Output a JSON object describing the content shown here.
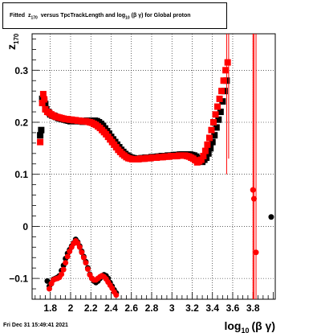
{
  "chart_data": {
    "type": "scatter",
    "title": {
      "prefix": "Fitted",
      "var": "z",
      "var_sub": "170",
      "mid": "versus TpcTrackLength and log",
      "log_sub": "10",
      "paren_open": "(",
      "beta": "β",
      "gamma": "γ",
      "paren_close": ")",
      "suffix": "for Global proton"
    },
    "xlabel": {
      "main": "log",
      "sub": "10",
      "paren": "(β γ)"
    },
    "ylabel": {
      "main": "z",
      "sub": "170"
    },
    "xlim": [
      1.62,
      4.02
    ],
    "ylim": [
      -0.14,
      0.37
    ],
    "x_ticks": [
      {
        "value": 1.8,
        "label": "1.8"
      },
      {
        "value": 2.0,
        "label": "2"
      },
      {
        "value": 2.2,
        "label": "2.2"
      },
      {
        "value": 2.4,
        "label": "2.4"
      },
      {
        "value": 2.6,
        "label": "2.6"
      },
      {
        "value": 2.8,
        "label": "2.8"
      },
      {
        "value": 3.0,
        "label": "3"
      },
      {
        "value": 3.2,
        "label": "3.2"
      },
      {
        "value": 3.4,
        "label": "3.4"
      },
      {
        "value": 3.6,
        "label": "3.6"
      },
      {
        "value": 3.8,
        "label": "3.8"
      }
    ],
    "y_ticks": [
      {
        "value": -0.1,
        "label": "−0.1"
      },
      {
        "value": 0.0,
        "label": "0"
      },
      {
        "value": 0.1,
        "label": "0.1"
      },
      {
        "value": 0.2,
        "label": "0.2"
      },
      {
        "value": 0.3,
        "label": "0.3"
      }
    ],
    "grid": true,
    "colors": {
      "black_series": "#000000",
      "red_series": "#ff0000"
    },
    "series": [
      {
        "marker": "square",
        "color": "#000000",
        "points": [
          [
            1.7,
            0.175
          ],
          [
            1.71,
            0.185
          ],
          [
            1.72,
            0.245
          ],
          [
            1.74,
            0.24
          ],
          [
            1.75,
            0.235
          ],
          [
            1.76,
            0.225
          ],
          [
            1.78,
            0.22
          ],
          [
            1.8,
            0.215
          ],
          [
            1.82,
            0.213
          ],
          [
            1.84,
            0.212
          ],
          [
            1.86,
            0.21
          ],
          [
            1.88,
            0.208
          ],
          [
            1.9,
            0.207
          ],
          [
            1.92,
            0.206
          ],
          [
            1.94,
            0.205
          ],
          [
            1.96,
            0.204
          ],
          [
            1.98,
            0.203
          ],
          [
            2.0,
            0.202
          ],
          [
            2.02,
            0.204
          ],
          [
            2.04,
            0.203
          ],
          [
            2.06,
            0.202
          ],
          [
            2.08,
            0.203
          ],
          [
            2.1,
            0.202
          ],
          [
            2.12,
            0.201
          ],
          [
            2.14,
            0.202
          ],
          [
            2.16,
            0.203
          ],
          [
            2.18,
            0.203
          ],
          [
            2.2,
            0.202
          ],
          [
            2.22,
            0.201
          ],
          [
            2.24,
            0.203
          ],
          [
            2.26,
            0.202
          ],
          [
            2.28,
            0.2
          ],
          [
            2.3,
            0.197
          ],
          [
            2.32,
            0.193
          ],
          [
            2.34,
            0.188
          ],
          [
            2.36,
            0.183
          ],
          [
            2.38,
            0.178
          ],
          [
            2.4,
            0.172
          ],
          [
            2.42,
            0.167
          ],
          [
            2.44,
            0.162
          ],
          [
            2.46,
            0.157
          ],
          [
            2.48,
            0.152
          ],
          [
            2.5,
            0.147
          ],
          [
            2.52,
            0.143
          ],
          [
            2.54,
            0.139
          ],
          [
            2.56,
            0.136
          ],
          [
            2.58,
            0.134
          ],
          [
            2.6,
            0.132
          ],
          [
            2.62,
            0.131
          ],
          [
            2.64,
            0.13
          ],
          [
            2.66,
            0.13
          ],
          [
            2.68,
            0.13
          ],
          [
            2.7,
            0.131
          ],
          [
            2.72,
            0.131
          ],
          [
            2.74,
            0.132
          ],
          [
            2.76,
            0.132
          ],
          [
            2.78,
            0.132
          ],
          [
            2.8,
            0.133
          ],
          [
            2.82,
            0.133
          ],
          [
            2.84,
            0.133
          ],
          [
            2.86,
            0.134
          ],
          [
            2.88,
            0.134
          ],
          [
            2.9,
            0.135
          ],
          [
            2.92,
            0.135
          ],
          [
            2.94,
            0.135
          ],
          [
            2.96,
            0.136
          ],
          [
            2.98,
            0.136
          ],
          [
            3.0,
            0.136
          ],
          [
            3.02,
            0.137
          ],
          [
            3.04,
            0.137
          ],
          [
            3.06,
            0.137
          ],
          [
            3.08,
            0.138
          ],
          [
            3.1,
            0.138
          ],
          [
            3.12,
            0.138
          ],
          [
            3.14,
            0.138
          ],
          [
            3.16,
            0.138
          ],
          [
            3.18,
            0.138
          ],
          [
            3.2,
            0.137
          ],
          [
            3.22,
            0.136
          ],
          [
            3.24,
            0.134
          ],
          [
            3.26,
            0.131
          ],
          [
            3.28,
            0.127
          ],
          [
            3.3,
            0.124
          ],
          [
            3.32,
            0.128
          ],
          [
            3.34,
            0.132
          ],
          [
            3.36,
            0.14
          ],
          [
            3.38,
            0.15
          ],
          [
            3.4,
            0.162
          ],
          [
            3.42,
            0.175
          ],
          [
            3.44,
            0.19
          ],
          [
            3.46,
            0.205
          ],
          [
            3.48,
            0.22
          ],
          [
            3.5,
            0.24
          ],
          [
            3.52,
            0.26
          ],
          [
            3.54,
            0.28
          ],
          [
            1.77,
            -0.105
          ],
          [
            1.79,
            -0.115
          ],
          [
            1.81,
            -0.11
          ],
          [
            1.83,
            -0.102
          ],
          [
            1.85,
            -0.1
          ],
          [
            1.87,
            -0.098
          ],
          [
            1.89,
            -0.095
          ],
          [
            1.91,
            -0.085
          ],
          [
            1.93,
            -0.075
          ],
          [
            1.95,
            -0.062
          ],
          [
            1.97,
            -0.052
          ],
          [
            1.99,
            -0.045
          ],
          [
            2.01,
            -0.038
          ],
          [
            2.03,
            -0.032
          ],
          [
            2.05,
            -0.025
          ],
          [
            2.07,
            -0.03
          ],
          [
            2.09,
            -0.038
          ],
          [
            2.11,
            -0.048
          ],
          [
            2.13,
            -0.058
          ],
          [
            2.15,
            -0.068
          ],
          [
            2.17,
            -0.08
          ],
          [
            2.19,
            -0.092
          ],
          [
            2.21,
            -0.1
          ],
          [
            2.23,
            -0.105
          ],
          [
            2.25,
            -0.108
          ],
          [
            2.27,
            -0.105
          ],
          [
            2.29,
            -0.1
          ],
          [
            2.31,
            -0.095
          ],
          [
            2.33,
            -0.093
          ],
          [
            2.35,
            -0.095
          ],
          [
            2.37,
            -0.1
          ],
          [
            2.39,
            -0.108
          ],
          [
            2.41,
            -0.115
          ],
          [
            2.43,
            -0.122
          ],
          [
            2.45,
            -0.128
          ],
          [
            3.98,
            0.018
          ]
        ]
      },
      {
        "marker": "square",
        "color": "#ff0000",
        "points": [
          [
            1.7,
            0.162
          ],
          [
            1.72,
            0.237
          ],
          [
            1.73,
            0.254
          ],
          [
            1.74,
            0.244
          ],
          [
            1.75,
            0.225
          ],
          [
            1.77,
            0.22
          ],
          [
            1.79,
            0.218
          ],
          [
            1.81,
            0.215
          ],
          [
            1.83,
            0.213
          ],
          [
            1.85,
            0.211
          ],
          [
            1.87,
            0.21
          ],
          [
            1.89,
            0.209
          ],
          [
            1.91,
            0.208
          ],
          [
            1.93,
            0.207
          ],
          [
            1.95,
            0.206
          ],
          [
            1.97,
            0.206
          ],
          [
            1.99,
            0.205
          ],
          [
            2.01,
            0.205
          ],
          [
            2.03,
            0.204
          ],
          [
            2.05,
            0.204
          ],
          [
            2.07,
            0.203
          ],
          [
            2.09,
            0.203
          ],
          [
            2.11,
            0.202
          ],
          [
            2.13,
            0.202
          ],
          [
            2.15,
            0.202
          ],
          [
            2.17,
            0.201
          ],
          [
            2.19,
            0.2
          ],
          [
            2.21,
            0.199
          ],
          [
            2.23,
            0.197
          ],
          [
            2.25,
            0.195
          ],
          [
            2.27,
            0.192
          ],
          [
            2.29,
            0.189
          ],
          [
            2.31,
            0.185
          ],
          [
            2.33,
            0.181
          ],
          [
            2.35,
            0.177
          ],
          [
            2.37,
            0.172
          ],
          [
            2.39,
            0.167
          ],
          [
            2.41,
            0.162
          ],
          [
            2.43,
            0.157
          ],
          [
            2.45,
            0.152
          ],
          [
            2.47,
            0.147
          ],
          [
            2.49,
            0.143
          ],
          [
            2.51,
            0.139
          ],
          [
            2.53,
            0.136
          ],
          [
            2.55,
            0.133
          ],
          [
            2.57,
            0.131
          ],
          [
            2.59,
            0.13
          ],
          [
            2.61,
            0.129
          ],
          [
            2.63,
            0.129
          ],
          [
            2.65,
            0.129
          ],
          [
            2.67,
            0.129
          ],
          [
            2.69,
            0.13
          ],
          [
            2.71,
            0.13
          ],
          [
            2.73,
            0.13
          ],
          [
            2.75,
            0.131
          ],
          [
            2.77,
            0.131
          ],
          [
            2.79,
            0.131
          ],
          [
            2.81,
            0.132
          ],
          [
            2.83,
            0.132
          ],
          [
            2.85,
            0.132
          ],
          [
            2.87,
            0.133
          ],
          [
            2.89,
            0.133
          ],
          [
            2.91,
            0.133
          ],
          [
            2.93,
            0.134
          ],
          [
            2.95,
            0.134
          ],
          [
            2.97,
            0.134
          ],
          [
            2.99,
            0.135
          ],
          [
            3.01,
            0.135
          ],
          [
            3.03,
            0.135
          ],
          [
            3.05,
            0.135
          ],
          [
            3.07,
            0.136
          ],
          [
            3.09,
            0.136
          ],
          [
            3.11,
            0.136
          ],
          [
            3.13,
            0.136
          ],
          [
            3.15,
            0.135
          ],
          [
            3.17,
            0.134
          ],
          [
            3.19,
            0.132
          ],
          [
            3.21,
            0.13
          ],
          [
            3.23,
            0.127
          ],
          [
            3.25,
            0.123
          ],
          [
            3.27,
            0.125
          ],
          [
            3.29,
            0.128
          ],
          [
            3.31,
            0.135
          ],
          [
            3.33,
            0.145
          ],
          [
            3.35,
            0.157
          ],
          [
            3.37,
            0.17
          ],
          [
            3.39,
            0.185
          ],
          [
            3.41,
            0.2
          ],
          [
            3.43,
            0.215
          ],
          [
            3.45,
            0.23
          ],
          [
            3.47,
            0.245
          ],
          [
            3.49,
            0.26
          ],
          [
            3.51,
            0.28
          ],
          [
            3.53,
            0.3
          ],
          [
            3.55,
            0.315
          ],
          [
            1.79,
            -0.12
          ],
          [
            1.81,
            -0.11
          ],
          [
            1.83,
            -0.103
          ],
          [
            1.85,
            -0.101
          ],
          [
            1.87,
            -0.1
          ],
          [
            1.89,
            -0.098
          ],
          [
            1.91,
            -0.092
          ],
          [
            1.93,
            -0.083
          ],
          [
            1.95,
            -0.07
          ],
          [
            1.97,
            -0.058
          ],
          [
            1.99,
            -0.048
          ],
          [
            2.01,
            -0.04
          ],
          [
            2.03,
            -0.033
          ],
          [
            2.05,
            -0.028
          ],
          [
            2.07,
            -0.032
          ],
          [
            2.09,
            -0.04
          ],
          [
            2.11,
            -0.05
          ],
          [
            2.13,
            -0.06
          ],
          [
            2.15,
            -0.07
          ],
          [
            2.17,
            -0.082
          ],
          [
            2.19,
            -0.093
          ],
          [
            2.21,
            -0.1
          ],
          [
            2.23,
            -0.103
          ],
          [
            2.25,
            -0.103
          ],
          [
            2.27,
            -0.1
          ],
          [
            2.29,
            -0.097
          ],
          [
            2.31,
            -0.095
          ],
          [
            2.33,
            -0.097
          ],
          [
            2.35,
            -0.101
          ],
          [
            2.37,
            -0.107
          ],
          [
            2.39,
            -0.113
          ],
          [
            2.41,
            -0.119
          ],
          [
            2.43,
            -0.126
          ],
          [
            2.45,
            -0.132
          ],
          [
            3.8,
            0.07
          ],
          [
            3.81,
            0.053
          ],
          [
            3.83,
            -0.05
          ]
        ],
        "error_bars": [
          {
            "x": 3.54,
            "ylo": 0.1,
            "yhi": 0.37
          },
          {
            "x": 3.56,
            "ylo": 0.13,
            "yhi": 0.37
          },
          {
            "x": 3.8,
            "ylo": -0.14,
            "yhi": 0.37
          },
          {
            "x": 3.81,
            "ylo": -0.14,
            "yhi": 0.37
          },
          {
            "x": 3.83,
            "ylo": -0.14,
            "yhi": 0.37
          }
        ]
      }
    ]
  },
  "footer_text": "Fri Dec 31 15:49:41 2021"
}
